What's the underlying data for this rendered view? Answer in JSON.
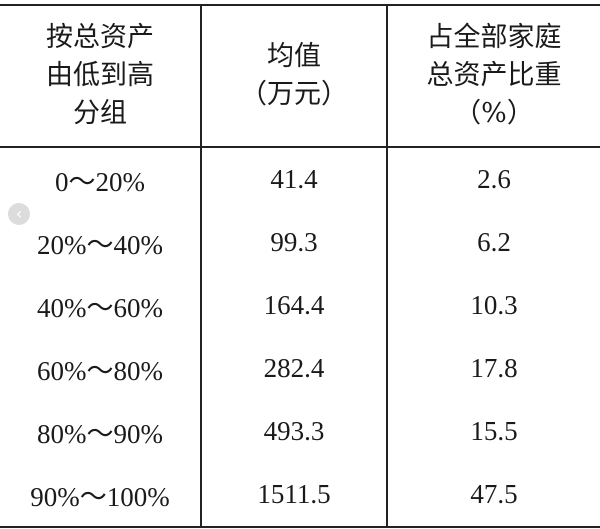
{
  "table": {
    "headers": [
      [
        "按总资产",
        "由低到高",
        "分组"
      ],
      [
        "均值",
        "（万元）"
      ],
      [
        "占全部家庭",
        "总资产比重",
        "（%）"
      ]
    ],
    "rows": [
      [
        "0～20%",
        "41.4",
        "2.6"
      ],
      [
        "20%～40%",
        "99.3",
        "6.2"
      ],
      [
        "40%～60%",
        "164.4",
        "10.3"
      ],
      [
        "60%～80%",
        "282.4",
        "17.8"
      ],
      [
        "80%～90%",
        "493.3",
        "15.5"
      ],
      [
        "90%～100%",
        "1511.5",
        "47.5"
      ]
    ]
  },
  "overlay": {
    "prev_arrow_glyph": "‹",
    "prev_arrow_icon": "chevron-left-icon"
  }
}
